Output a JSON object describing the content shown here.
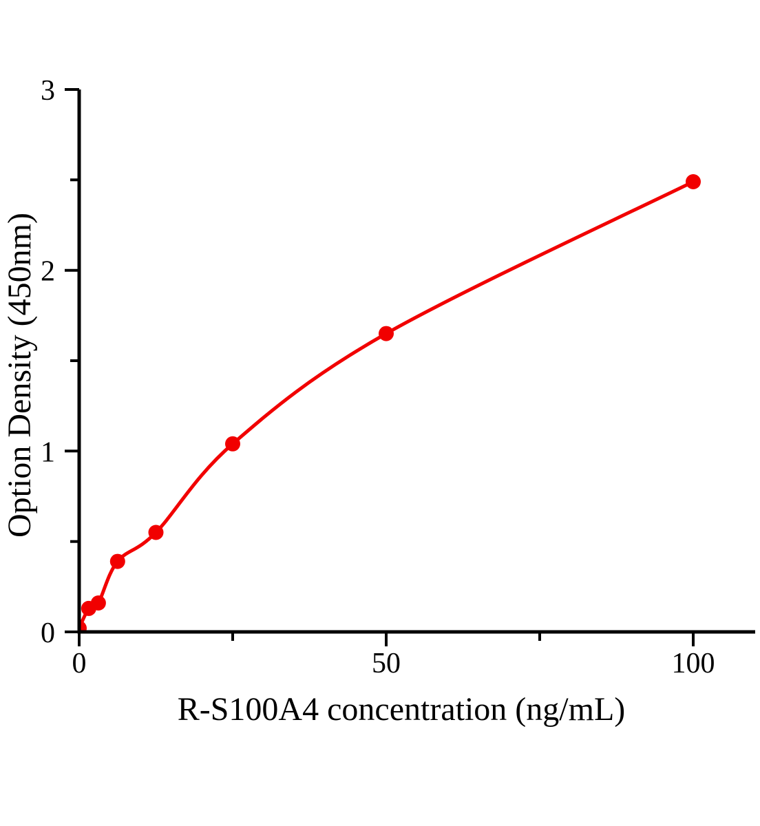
{
  "chart_data": {
    "type": "scatter",
    "subtype": "standard-curve-with-fitted-line",
    "title": "",
    "xlabel": "R-S100A4 concentration (ng/mL)",
    "ylabel": "Option Density（450nm）",
    "series": [
      {
        "x": [
          0,
          1.56,
          3.125,
          6.25,
          12.5,
          25,
          50,
          100
        ],
        "y": [
          0.02,
          0.13,
          0.16,
          0.39,
          0.55,
          1.04,
          1.65,
          2.49
        ]
      }
    ],
    "xlim": [
      0,
      110
    ],
    "ylim": [
      0,
      3
    ],
    "x_major_ticks": [
      {
        "value": 0,
        "label": "0"
      },
      {
        "value": 50,
        "label": "50"
      },
      {
        "value": 100,
        "label": "100"
      }
    ],
    "x_minor_ticks": [
      25,
      75
    ],
    "y_major_ticks": [
      {
        "value": 0,
        "label": "0"
      },
      {
        "value": 1,
        "label": "1"
      },
      {
        "value": 2,
        "label": "2"
      },
      {
        "value": 3,
        "label": "3"
      }
    ],
    "y_minor_ticks": [
      0.5,
      1.5,
      2.5
    ],
    "grid": false,
    "legend": "none",
    "curve_color": "#f10000",
    "marker_color": "#f10000",
    "axis_color": "#000000",
    "text_color": "#000000",
    "background_color": "#ffffff"
  }
}
